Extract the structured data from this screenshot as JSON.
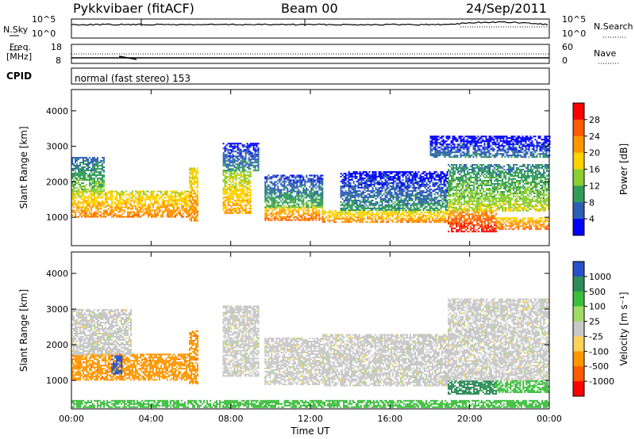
{
  "header": {
    "station": "Pykkvibaer (fitACF)",
    "beam": "Beam 00",
    "date": "24/Sep/2011"
  },
  "panels": {
    "nsky_label": "N.Sky",
    "nsearch_label": "N.Search",
    "noise_tick_top": "10^5",
    "noise_tick_bottom": "10^0",
    "freq_label_line1": "Freq.",
    "freq_label_line2": "[MHz]",
    "freq_ticks": [
      "18",
      "8"
    ],
    "nave_label": "Nave",
    "nave_ticks": [
      "60",
      "0"
    ],
    "cpid_label": "CPID",
    "cpid_text": "normal (fast stereo) 153"
  },
  "chart_data": [
    {
      "type": "heatmap",
      "name": "power",
      "ylabel": "Slant Range [km]",
      "ylim": [
        200,
        4600
      ],
      "yticks": [
        1000,
        2000,
        3000,
        4000
      ],
      "xlim": [
        0,
        24
      ],
      "colorbar_label": "Power [dB]",
      "colorbar_ticks": [
        "28",
        "24",
        "20",
        "16",
        "12",
        "8",
        "4"
      ],
      "colorbar_colors": [
        "#ff0000",
        "#ff5a00",
        "#ff9600",
        "#ffd200",
        "#8ccd32",
        "#329c5a",
        "#2d5fb4",
        "#0000ff"
      ],
      "echo_bands": [
        {
          "t0": 0.0,
          "t1": 5.9,
          "r0": 1000,
          "r1": 1750,
          "level": 24
        },
        {
          "t0": 0.0,
          "t1": 1.6,
          "r0": 1750,
          "r1": 2700,
          "level": 14
        },
        {
          "t0": 5.9,
          "t1": 6.3,
          "r0": 900,
          "r1": 2400,
          "level": 24
        },
        {
          "t0": 7.6,
          "t1": 9.0,
          "r0": 1100,
          "r1": 2300,
          "level": 22
        },
        {
          "t0": 7.6,
          "t1": 9.4,
          "r0": 2300,
          "r1": 3100,
          "level": 10
        },
        {
          "t0": 9.7,
          "t1": 12.6,
          "r0": 900,
          "r1": 1300,
          "level": 26
        },
        {
          "t0": 9.7,
          "t1": 12.6,
          "r0": 1300,
          "r1": 2200,
          "level": 12
        },
        {
          "t0": 12.6,
          "t1": 18.9,
          "r0": 850,
          "r1": 1200,
          "level": 24
        },
        {
          "t0": 13.5,
          "t1": 18.9,
          "r0": 1200,
          "r1": 2300,
          "level": 10
        },
        {
          "t0": 18.9,
          "t1": 21.3,
          "r0": 600,
          "r1": 1200,
          "level": 30
        },
        {
          "t0": 18.9,
          "t1": 24.0,
          "r0": 1200,
          "r1": 2500,
          "level": 16
        },
        {
          "t0": 21.3,
          "t1": 24.0,
          "r0": 650,
          "r1": 1000,
          "level": 26
        },
        {
          "t0": 18.0,
          "t1": 24.0,
          "r0": 2700,
          "r1": 3300,
          "level": 8
        }
      ]
    },
    {
      "type": "heatmap",
      "name": "velocity",
      "ylabel": "Slant Range [km]",
      "ylim": [
        200,
        4600
      ],
      "yticks": [
        1000,
        2000,
        3000,
        4000
      ],
      "xlim": [
        0,
        24
      ],
      "xticks": [
        "00:00",
        "04:00",
        "08:00",
        "12:00",
        "16:00",
        "20:00",
        "00:00"
      ],
      "xlabel": "Time UT",
      "colorbar_label": "Velocity [m s⁻¹]",
      "colorbar_ticks": [
        "1000",
        "500",
        "100",
        "25",
        "-25",
        "-100",
        "-500",
        "-1000"
      ],
      "colorbar_colors": [
        "#2850c8",
        "#2d8c5a",
        "#3cbe3c",
        "#a0dc64",
        "#c8c8c8",
        "#ffd25a",
        "#ff9600",
        "#ff5a00",
        "#ff0000"
      ],
      "echo_bands": [
        {
          "t0": 0.0,
          "t1": 5.9,
          "r0": 1000,
          "r1": 1750,
          "level": -500
        },
        {
          "t0": 0.0,
          "t1": 3.0,
          "r0": 1750,
          "r1": 3000,
          "level": 0
        },
        {
          "t0": 2.0,
          "t1": 2.5,
          "r0": 1200,
          "r1": 1700,
          "level": 1000
        },
        {
          "t0": 5.9,
          "t1": 6.3,
          "r0": 900,
          "r1": 2400,
          "level": -500
        },
        {
          "t0": 7.6,
          "t1": 9.4,
          "r0": 1100,
          "r1": 3100,
          "level": 0
        },
        {
          "t0": 9.7,
          "t1": 12.6,
          "r0": 900,
          "r1": 2200,
          "level": 0
        },
        {
          "t0": 12.6,
          "t1": 18.9,
          "r0": 850,
          "r1": 2300,
          "level": 0
        },
        {
          "t0": 18.9,
          "t1": 21.3,
          "r0": 600,
          "r1": 1000,
          "level": 500
        },
        {
          "t0": 18.9,
          "t1": 24.0,
          "r0": 1000,
          "r1": 3300,
          "level": 0
        },
        {
          "t0": 21.3,
          "t1": 24.0,
          "r0": 650,
          "r1": 1000,
          "level": 100
        },
        {
          "t0": 0.0,
          "t1": 24.0,
          "r0": 250,
          "r1": 450,
          "level": 100
        }
      ]
    }
  ]
}
